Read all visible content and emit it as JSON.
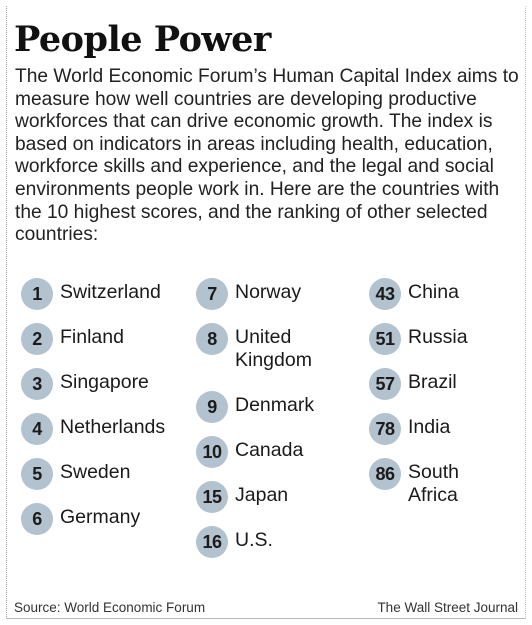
{
  "title": "People Power",
  "description": "The World Economic Forum’s Human Capital Index aims to measure how well countries are developing productive workforces that can drive economic growth. The index is based on indicators in areas including health, education, workforce skills and experience, and  the legal and social environments people work in. Here are the countries with the 10 highest scores,  and the ranking of other selected countries:",
  "rankings": [
    {
      "rank": "1",
      "country": "Switzerland"
    },
    {
      "rank": "2",
      "country": "Finland"
    },
    {
      "rank": "3",
      "country": "Singapore"
    },
    {
      "rank": "4",
      "country": "Netherlands"
    },
    {
      "rank": "5",
      "country": "Sweden"
    },
    {
      "rank": "6",
      "country": "Germany"
    },
    {
      "rank": "7",
      "country": "Norway"
    },
    {
      "rank": "8",
      "country": "United\nKingdom"
    },
    {
      "rank": "9",
      "country": "Denmark"
    },
    {
      "rank": "10",
      "country": "Canada"
    },
    {
      "rank": "15",
      "country": "Japan"
    },
    {
      "rank": "16",
      "country": "U.S."
    },
    {
      "rank": "43",
      "country": "China"
    },
    {
      "rank": "51",
      "country": "Russia"
    },
    {
      "rank": "57",
      "country": "Brazil"
    },
    {
      "rank": "78",
      "country": "India"
    },
    {
      "rank": "86",
      "country": "South\nAfrica"
    }
  ],
  "footer": {
    "source": "Source: World Economic Forum",
    "brand": "The Wall Street Journal"
  },
  "colors": {
    "badge": "#b3c2cf"
  }
}
